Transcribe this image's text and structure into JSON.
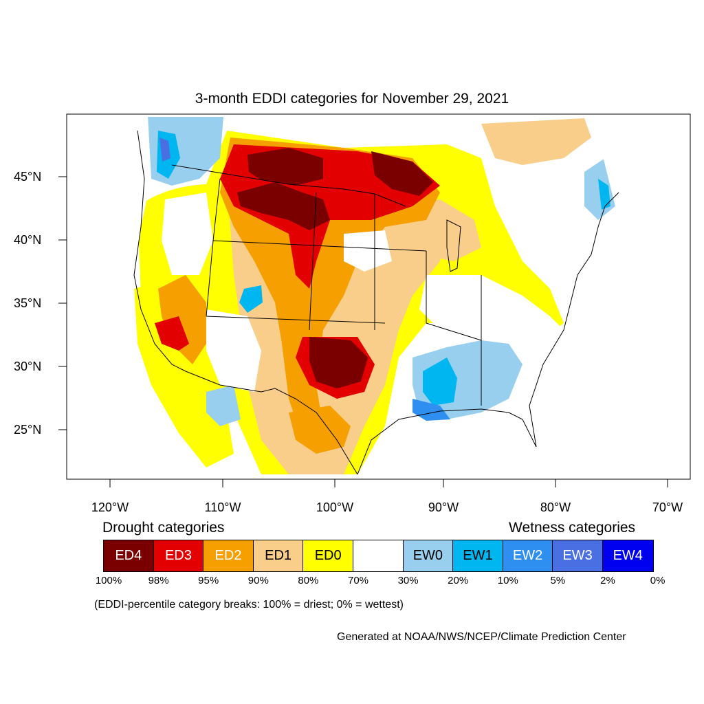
{
  "map": {
    "title": "3-month EDDI categories for November 29, 2021",
    "lat_labels": [
      "45°N",
      "40°N",
      "35°N",
      "30°N",
      "25°N"
    ],
    "lon_labels": [
      "120°W",
      "110°W",
      "100°W",
      "90°W",
      "80°W",
      "70°W"
    ],
    "colors": {
      "ED4": "#7a0000",
      "ED3": "#e30000",
      "ED2": "#f5a000",
      "ED1": "#f9cd8a",
      "ED0": "#ffff00",
      "neutral": "#ffffff",
      "EW0": "#99cfee",
      "EW1": "#00b6f0",
      "EW2": "#2f8ff0",
      "EW3": "#4a6fe3",
      "EW4": "#0000f0"
    }
  },
  "legend": {
    "drought_heading": "Drought categories",
    "wetness_heading": "Wetness categories",
    "categories": [
      {
        "label": "ED4",
        "color": "#7a0000",
        "text_color": "#ffffff"
      },
      {
        "label": "ED3",
        "color": "#e30000",
        "text_color": "#ffffff"
      },
      {
        "label": "ED2",
        "color": "#f5a000",
        "text_color": "#ffffff"
      },
      {
        "label": "ED1",
        "color": "#f9cd8a",
        "text_color": "#000000"
      },
      {
        "label": "ED0",
        "color": "#ffff00",
        "text_color": "#000000"
      },
      {
        "label": "",
        "color": "#ffffff",
        "text_color": "#000000"
      },
      {
        "label": "EW0",
        "color": "#99cfee",
        "text_color": "#000000"
      },
      {
        "label": "EW1",
        "color": "#00b6f0",
        "text_color": "#000000"
      },
      {
        "label": "EW2",
        "color": "#2f8ff0",
        "text_color": "#ffffff"
      },
      {
        "label": "EW3",
        "color": "#4a6fe3",
        "text_color": "#ffffff"
      },
      {
        "label": "EW4",
        "color": "#0000f0",
        "text_color": "#ffffff"
      }
    ],
    "percent_breaks": [
      "100%",
      "98%",
      "95%",
      "90%",
      "80%",
      "70%",
      "30%",
      "20%",
      "10%",
      "5%",
      "2%",
      "0%"
    ],
    "note": "(EDDI-percentile category breaks: 100% = driest; 0% = wettest)",
    "credit": "Generated at NOAA/NWS/NCEP/Climate Prediction Center"
  }
}
